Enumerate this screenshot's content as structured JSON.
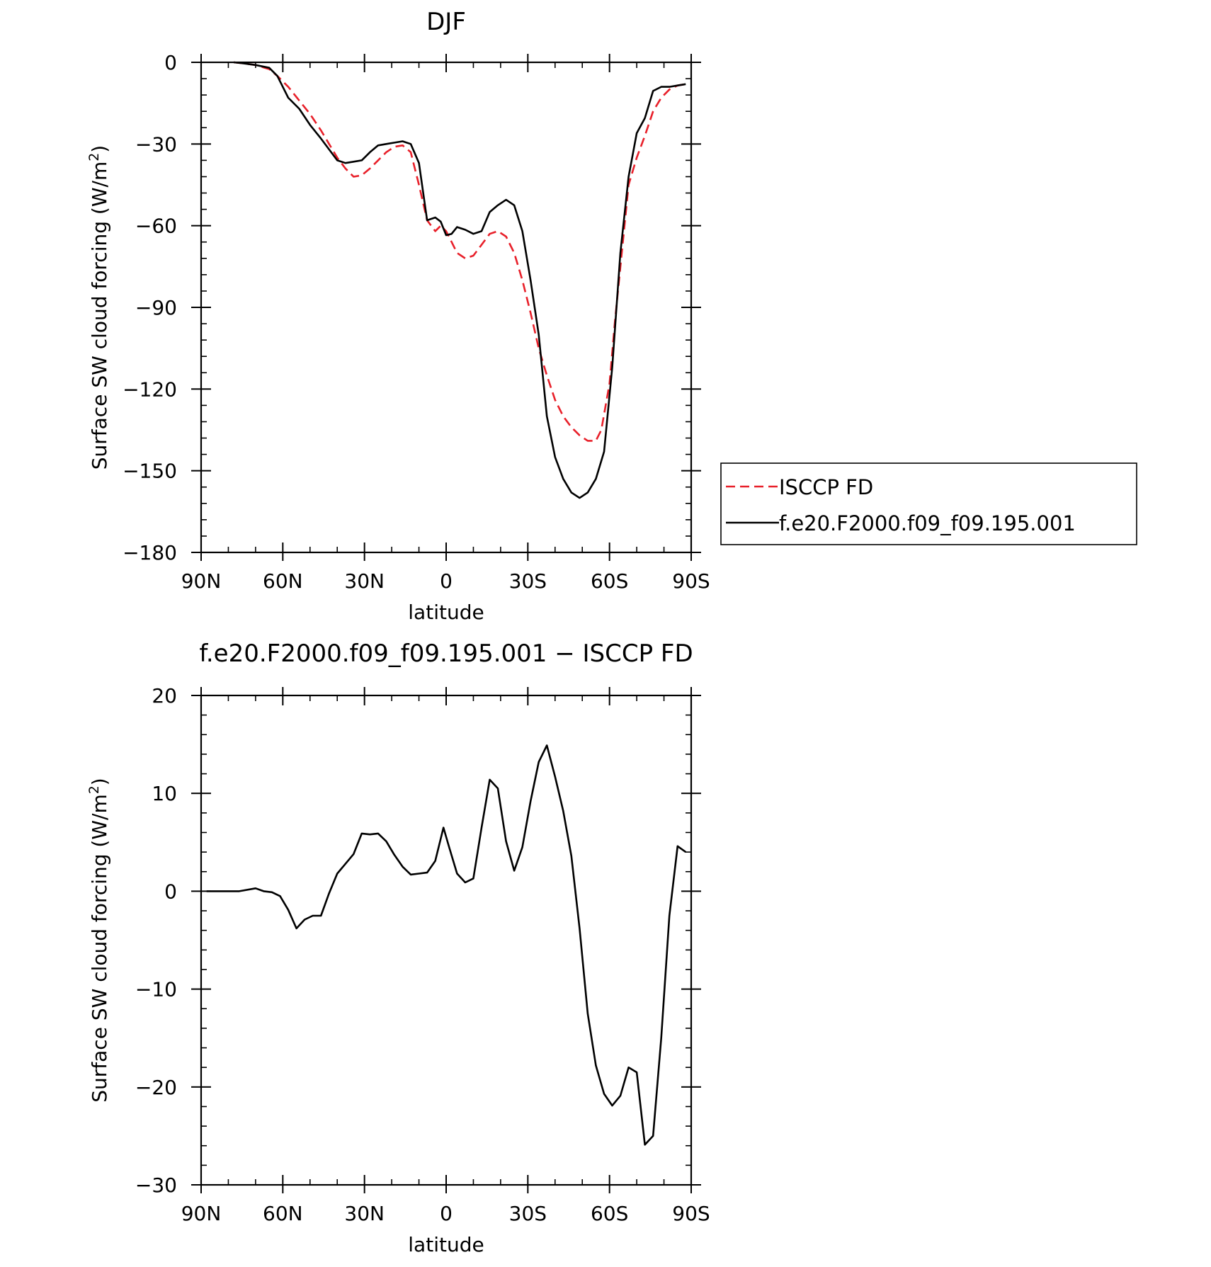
{
  "chart_data": [
    {
      "type": "line",
      "title": "DJF",
      "xlabel": "latitude",
      "ylabel": "Surface SW cloud forcing (W/m²)",
      "ylabel_parts": {
        "pre": "Surface SW cloud forcing (W/m",
        "sup": "2",
        "post": ")"
      },
      "xlim": [
        90,
        -90
      ],
      "ylim": [
        -180,
        0
      ],
      "xticks": [
        90,
        60,
        30,
        0,
        -30,
        -60,
        -90
      ],
      "xtick_labels": [
        "90N",
        "60N",
        "30N",
        "0",
        "30S",
        "60S",
        "90S"
      ],
      "yticks": [
        0,
        -30,
        -60,
        -90,
        -120,
        -150,
        -180
      ],
      "ytick_labels": [
        "0",
        "−30",
        "−60",
        "−90",
        "−120",
        "−150",
        "−180"
      ],
      "legend_position": "right",
      "series": [
        {
          "name": "ISCCP FD",
          "color": "#e8202a",
          "dash": "dashed",
          "x": [
            78,
            75,
            70,
            65,
            62,
            58,
            54,
            50,
            46,
            43,
            40,
            37,
            34,
            31,
            28,
            25,
            22,
            19,
            16,
            13,
            10,
            7,
            4,
            2,
            0,
            -2,
            -4,
            -7,
            -10,
            -13,
            -16,
            -19,
            -22,
            -25,
            -28,
            -31,
            -34,
            -37,
            -40,
            -43,
            -46,
            -49,
            -52,
            -55,
            -57,
            -60,
            -62,
            -65,
            -67,
            -70,
            -73,
            -76,
            -79,
            -82,
            -85,
            -88
          ],
          "y": [
            0,
            -0.3,
            -1,
            -2.5,
            -5,
            -9,
            -14,
            -19,
            -25,
            -30,
            -35,
            -39,
            -42,
            -41.5,
            -39,
            -36,
            -33,
            -31,
            -30.5,
            -33,
            -45,
            -58,
            -62,
            -60,
            -62,
            -66,
            -70,
            -72,
            -71,
            -67,
            -63,
            -62,
            -64,
            -70,
            -80,
            -92,
            -105,
            -115,
            -124,
            -130,
            -134,
            -137,
            -139,
            -139,
            -135,
            -118,
            -95,
            -65,
            -45,
            -35,
            -27,
            -18,
            -13,
            -10,
            -8.5,
            -8
          ]
        },
        {
          "name": "f.e20.F2000.f09_f09.195.001",
          "color": "#000000",
          "dash": "solid",
          "x": [
            78,
            75,
            70,
            65,
            62,
            58,
            54,
            50,
            46,
            43,
            40,
            37,
            34,
            31,
            28,
            25,
            22,
            19,
            16,
            13,
            10,
            7,
            4,
            2,
            0,
            -2,
            -4,
            -7,
            -10,
            -13,
            -16,
            -19,
            -22,
            -25,
            -28,
            -31,
            -34,
            -37,
            -40,
            -43,
            -46,
            -49,
            -52,
            -55,
            -58,
            -61,
            -64,
            -67,
            -70,
            -73,
            -76,
            -79,
            -82,
            -85,
            -88
          ],
          "y": [
            0,
            -0.3,
            -1,
            -2,
            -5,
            -13,
            -17,
            -23,
            -28,
            -32,
            -36,
            -37,
            -36.5,
            -36,
            -33,
            -30.5,
            -30,
            -29.5,
            -29,
            -30,
            -37,
            -58,
            -57,
            -58.5,
            -63.5,
            -63,
            -60.5,
            -61.5,
            -63,
            -62,
            -55,
            -52.5,
            -50.5,
            -52.5,
            -62,
            -80,
            -100,
            -130,
            -145,
            -153,
            -158,
            -160,
            -158,
            -153,
            -143,
            -112,
            -70,
            -42,
            -26,
            -20.5,
            -10.5,
            -9,
            -9,
            -8.5,
            -8
          ]
        }
      ]
    },
    {
      "type": "line",
      "title": "f.e20.F2000.f09_f09.195.001 − ISCCP FD",
      "xlabel": "latitude",
      "ylabel": "Surface SW cloud forcing (W/m²)",
      "ylabel_parts": {
        "pre": "Surface SW cloud forcing (W/m",
        "sup": "2",
        "post": ")"
      },
      "xlim": [
        90,
        -90
      ],
      "ylim": [
        -30,
        20
      ],
      "xticks": [
        90,
        60,
        30,
        0,
        -30,
        -60,
        -90
      ],
      "xtick_labels": [
        "90N",
        "60N",
        "30N",
        "0",
        "30S",
        "60S",
        "90S"
      ],
      "yticks": [
        20,
        10,
        0,
        -10,
        -20,
        -30
      ],
      "ytick_labels": [
        "20",
        "10",
        "0",
        "−10",
        "−20",
        "−30"
      ],
      "series": [
        {
          "color": "#000000",
          "dash": "solid",
          "x": [
            88,
            82,
            76,
            70,
            67,
            64,
            61,
            58,
            55,
            52,
            49,
            46,
            43,
            40,
            37,
            34,
            31,
            28,
            25,
            22,
            19,
            16,
            13,
            10,
            7,
            4,
            1,
            -1,
            -4,
            -7,
            -10,
            -13,
            -16,
            -19,
            -22,
            -25,
            -28,
            -31,
            -34,
            -37,
            -40,
            -43,
            -46,
            -49,
            -52,
            -55,
            -58,
            -61,
            -64,
            -67,
            -70,
            -73,
            -76,
            -79,
            -82,
            -85,
            -88
          ],
          "y": [
            0,
            0,
            0,
            0.3,
            0,
            -0.1,
            -0.5,
            -1.9,
            -3.8,
            -2.9,
            -2.5,
            -2.5,
            -0.2,
            1.8,
            2.8,
            3.8,
            5.9,
            5.8,
            5.9,
            5.1,
            3.7,
            2.5,
            1.7,
            1.8,
            1.9,
            3.1,
            6.5,
            4.6,
            1.8,
            0.9,
            1.3,
            6.5,
            11.4,
            10.5,
            5.1,
            2.1,
            4.5,
            9.2,
            13.2,
            14.9,
            11.7,
            8.2,
            3.6,
            -3.8,
            -12.5,
            -17.8,
            -20.7,
            -21.9,
            -20.9,
            -18.0,
            -18.5,
            -25.9,
            -25.0,
            -15.0,
            -2.5,
            4.6,
            4.0
          ]
        }
      ]
    }
  ]
}
